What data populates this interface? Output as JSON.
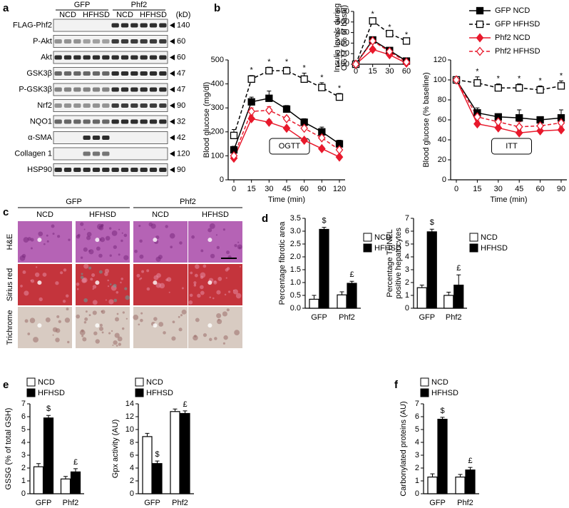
{
  "panel_labels": [
    "a",
    "b",
    "c",
    "d",
    "e",
    "f"
  ],
  "blot": {
    "groups": [
      "GFP",
      "Phf2"
    ],
    "conditions": [
      "NCD",
      "HFHSD",
      "NCD",
      "HFHSD"
    ],
    "unit": "(kD)",
    "rows": [
      {
        "label": "FLAG-Phf2",
        "kd": 140
      },
      {
        "label": "P-Akt",
        "kd": 60
      },
      {
        "label": "Akt",
        "kd": 60
      },
      {
        "label": "GSK3β",
        "kd": 47
      },
      {
        "label": "P-GSK3β",
        "kd": 47
      },
      {
        "label": "Nrf2",
        "kd": 90
      },
      {
        "label": "NQO1",
        "kd": 32
      },
      {
        "label": "α-SMA",
        "kd": 42
      },
      {
        "label": "Collagen 1",
        "kd": 120
      },
      {
        "label": "HSP90",
        "kd": 90
      }
    ]
  },
  "histology": {
    "groups": [
      "GFP",
      "Phf2"
    ],
    "conditions": [
      "NCD",
      "HFHSD",
      "NCD",
      "HFHSD"
    ],
    "stains": [
      "H&E",
      "Sirius red",
      "Trichrome"
    ]
  },
  "chart_data": [
    {
      "type": "line",
      "label": "OGTT",
      "ylabel": "Blood glucose (mg/dl)",
      "xlabel": "Time (min)",
      "categories": [
        "0",
        "15",
        "30",
        "45",
        "60",
        "90",
        "120"
      ],
      "ylim": [
        0,
        500
      ],
      "yticks": [
        0,
        100,
        200,
        300,
        400,
        500
      ],
      "significance": [
        null,
        "*",
        "*",
        "*",
        "*",
        "*",
        "*"
      ],
      "series": [
        {
          "name": "GFP NCD",
          "color": "#000000",
          "dashed": false,
          "marker": "square",
          "filled": true,
          "values": [
            125,
            325,
            340,
            295,
            240,
            200,
            150
          ],
          "errors": [
            15,
            20,
            30,
            15,
            15,
            20,
            15
          ]
        },
        {
          "name": "GFP HFHSD",
          "color": "#000000",
          "dashed": true,
          "marker": "square",
          "filled": false,
          "values": [
            185,
            420,
            455,
            455,
            420,
            385,
            345
          ],
          "errors": [
            25,
            15,
            15,
            15,
            25,
            20,
            15
          ]
        },
        {
          "name": "Phf2 NCD",
          "color": "#e8192c",
          "dashed": false,
          "marker": "diamond",
          "filled": true,
          "values": [
            90,
            255,
            240,
            215,
            165,
            130,
            95
          ],
          "errors": [
            10,
            15,
            10,
            8,
            8,
            8,
            8
          ]
        },
        {
          "name": "Phf2 HFHSD",
          "color": "#e8192c",
          "dashed": true,
          "marker": "diamond",
          "filled": false,
          "values": [
            100,
            285,
            290,
            255,
            215,
            175,
            125
          ],
          "errors": [
            10,
            15,
            15,
            10,
            15,
            10,
            20
          ]
        }
      ]
    },
    {
      "type": "line",
      "ylabel": [
        "Insulin levels during",
        "OGTT (% of basal)"
      ],
      "categories": [
        "0",
        "15",
        "30",
        "60"
      ],
      "ylim": [
        100,
        600
      ],
      "yticks": [
        100,
        200,
        300,
        400,
        500,
        600
      ],
      "significance": [
        null,
        "*",
        "*",
        "*"
      ],
      "series": [
        {
          "name": "GFP NCD",
          "color": "#000000",
          "dashed": false,
          "marker": "square",
          "filled": true,
          "values": [
            100,
            330,
            230,
            130
          ],
          "errors": [
            0,
            20,
            15,
            10
          ]
        },
        {
          "name": "GFP HFHSD",
          "color": "#000000",
          "dashed": true,
          "marker": "square",
          "filled": false,
          "values": [
            100,
            510,
            390,
            320
          ],
          "errors": [
            0,
            15,
            10,
            10
          ]
        },
        {
          "name": "Phf2 NCD",
          "color": "#e8192c",
          "dashed": false,
          "marker": "diamond",
          "filled": true,
          "values": [
            100,
            240,
            190,
            110
          ],
          "errors": [
            0,
            15,
            10,
            8
          ]
        },
        {
          "name": "Phf2 HFHSD",
          "color": "#e8192c",
          "dashed": true,
          "marker": "diamond",
          "filled": false,
          "values": [
            100,
            320,
            220,
            120
          ],
          "errors": [
            0,
            15,
            10,
            8
          ]
        }
      ]
    },
    {
      "type": "line",
      "label": "ITT",
      "ylabel": "Blood glucose (% baseline)",
      "xlabel": "Time (min)",
      "legend": "upper right",
      "categories": [
        "0",
        "15",
        "30",
        "45",
        "60",
        "90"
      ],
      "ylim": [
        0,
        120
      ],
      "yticks": [
        0,
        20,
        40,
        60,
        80,
        100,
        120
      ],
      "significance": [
        null,
        "*",
        "*",
        "*",
        "*",
        "*"
      ],
      "series": [
        {
          "name": "GFP NCD",
          "color": "#000000",
          "dashed": false,
          "marker": "square",
          "filled": true,
          "values": [
            100,
            67,
            63,
            62,
            60,
            62
          ],
          "errors": [
            0,
            5,
            3,
            8,
            3,
            8
          ]
        },
        {
          "name": "GFP HFHSD",
          "color": "#000000",
          "dashed": true,
          "marker": "square",
          "filled": false,
          "values": [
            100,
            97,
            92,
            92,
            90,
            94
          ],
          "errors": [
            0,
            6,
            4,
            4,
            4,
            5
          ]
        },
        {
          "name": "Phf2 NCD",
          "color": "#e8192c",
          "dashed": false,
          "marker": "diamond",
          "filled": true,
          "values": [
            100,
            56,
            52,
            47,
            49,
            50
          ],
          "errors": [
            0,
            3,
            3,
            3,
            3,
            3
          ]
        },
        {
          "name": "Phf2 HFHSD",
          "color": "#e8192c",
          "dashed": true,
          "marker": "diamond",
          "filled": false,
          "values": [
            100,
            63,
            58,
            53,
            54,
            57
          ],
          "errors": [
            0,
            4,
            4,
            5,
            4,
            4
          ]
        }
      ]
    },
    {
      "type": "bar",
      "ylabel": "Percentage fibrotic area",
      "legend": "upper right",
      "categories": [
        "GFP",
        "Phf2"
      ],
      "ylim": [
        0,
        3.5
      ],
      "yticks": [
        {
          "value": 0,
          "label": "0.0"
        },
        0.5,
        {
          "value": 1,
          "label": "1.0"
        },
        1.5,
        {
          "value": 2,
          "label": "2.0"
        },
        2.5,
        {
          "value": 3,
          "label": "3.0"
        },
        3.5
      ],
      "series": [
        {
          "name": "NCD",
          "color": "#ffffff",
          "values": [
            0.35,
            0.52
          ],
          "errors": [
            0.15,
            0.12
          ]
        },
        {
          "name": "HFHSD",
          "color": "#000000",
          "values": [
            3.07,
            0.97
          ],
          "errors": [
            0.08,
            0.08
          ],
          "annotations": [
            "$",
            "£"
          ]
        }
      ]
    },
    {
      "type": "bar",
      "ylabel": [
        "Percentage TUNEL",
        "positive hepatocytes"
      ],
      "legend": "upper right",
      "categories": [
        "GFP",
        "Phf2"
      ],
      "ylim": [
        0,
        7
      ],
      "yticks": [
        0,
        1,
        2,
        3,
        4,
        5,
        6,
        7
      ],
      "series": [
        {
          "name": "NCD",
          "color": "#ffffff",
          "values": [
            1.6,
            1.0
          ],
          "errors": [
            0.2,
            0.25
          ]
        },
        {
          "name": "HFHSD",
          "color": "#000000",
          "values": [
            5.95,
            1.8
          ],
          "errors": [
            0.2,
            0.8
          ],
          "annotations": [
            "$",
            "£"
          ]
        }
      ]
    },
    {
      "type": "bar",
      "ylabel": "GSSG (% of total GSH)",
      "legend": "upper left",
      "categories": [
        "GFP",
        "Phf2"
      ],
      "ylim": [
        0,
        7
      ],
      "yticks": [
        0,
        1,
        2,
        3,
        4,
        5,
        6,
        7
      ],
      "series": [
        {
          "name": "NCD",
          "color": "#ffffff",
          "values": [
            2.1,
            1.15
          ],
          "errors": [
            0.25,
            0.2
          ]
        },
        {
          "name": "HFHSD",
          "color": "#000000",
          "values": [
            5.9,
            1.7
          ],
          "errors": [
            0.2,
            0.25
          ],
          "annotations": [
            "$",
            "£"
          ]
        }
      ]
    },
    {
      "type": "bar",
      "ylabel": "Gpx activity (AU)",
      "legend": "upper left",
      "categories": [
        "GFP",
        "Phf2"
      ],
      "ylim": [
        0,
        14
      ],
      "yticks": [
        0,
        2,
        4,
        6,
        8,
        10,
        12,
        14
      ],
      "series": [
        {
          "name": "NCD",
          "color": "#ffffff",
          "values": [
            8.9,
            12.8
          ],
          "errors": [
            0.5,
            0.4
          ]
        },
        {
          "name": "HFHSD",
          "color": "#000000",
          "values": [
            4.7,
            12.5
          ],
          "errors": [
            0.4,
            0.4
          ],
          "annotations": [
            "$",
            "£"
          ]
        }
      ]
    },
    {
      "type": "bar",
      "ylabel": "Carbonylated proteins (AU)",
      "legend": "upper left",
      "categories": [
        "GFP",
        "Phf2"
      ],
      "ylim": [
        0,
        7
      ],
      "yticks": [
        0,
        1,
        2,
        3,
        4,
        5,
        6,
        7
      ],
      "series": [
        {
          "name": "NCD",
          "color": "#ffffff",
          "values": [
            1.3,
            1.3
          ],
          "errors": [
            0.25,
            0.2
          ]
        },
        {
          "name": "HFHSD",
          "color": "#000000",
          "values": [
            5.8,
            1.85
          ],
          "errors": [
            0.15,
            0.2
          ],
          "annotations": [
            "$",
            "£"
          ]
        }
      ]
    }
  ]
}
